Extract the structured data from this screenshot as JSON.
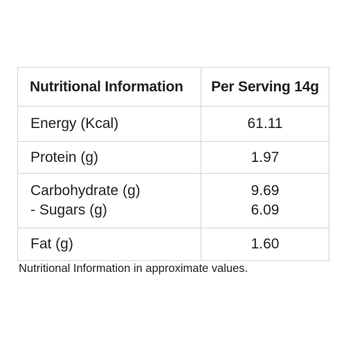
{
  "table": {
    "header": {
      "nutrient": "Nutritional Information",
      "serving": "Per Serving 14g"
    },
    "rows": [
      {
        "label": "Energy (Kcal)",
        "value": "61.11"
      },
      {
        "label": "Protein (g)",
        "value": "1.97"
      },
      {
        "label": "Carbohydrate (g)",
        "value": "9.69",
        "sub_label": "- Sugars (g)",
        "sub_value": "6.09"
      },
      {
        "label": "Fat (g)",
        "value": "1.60"
      }
    ]
  },
  "footnote": "Nutritional Information in approximate values."
}
